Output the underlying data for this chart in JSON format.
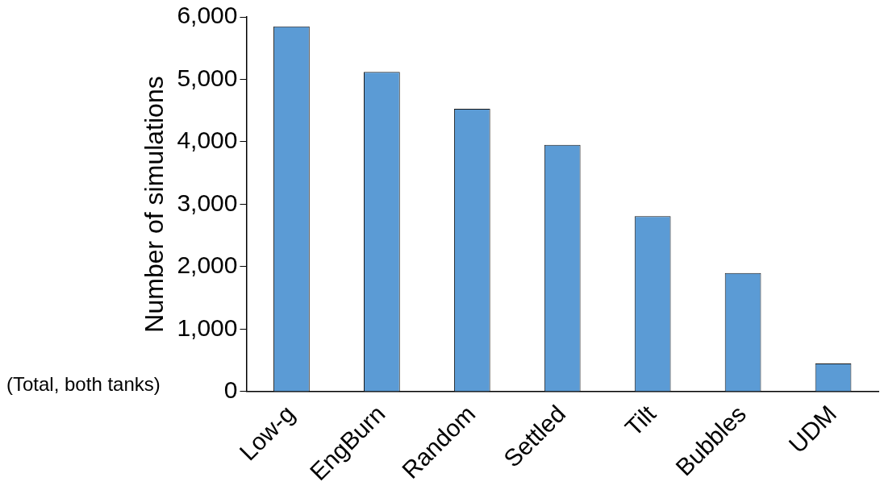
{
  "chart_data": {
    "type": "bar",
    "categories": [
      "Low-g",
      "EngBurn",
      "Random",
      "Settled",
      "Tilt",
      "Bubbles",
      "UDM"
    ],
    "values": [
      5850,
      5120,
      4530,
      3950,
      2810,
      1900,
      450
    ],
    "color": "#5b9bd5",
    "ylabel": "Number of simulations",
    "ylim": [
      0,
      6000
    ],
    "yticks": [
      {
        "value": 0,
        "label": "0"
      },
      {
        "value": 1000,
        "label": "1,000"
      },
      {
        "value": 2000,
        "label": "2,000"
      },
      {
        "value": 3000,
        "label": "3,000"
      },
      {
        "value": 4000,
        "label": "4,000"
      },
      {
        "value": 5000,
        "label": "5,000"
      },
      {
        "value": 6000,
        "label": "6,000"
      }
    ],
    "annotations": [
      "(Total, both tanks)"
    ],
    "grid": false,
    "legend": false
  }
}
